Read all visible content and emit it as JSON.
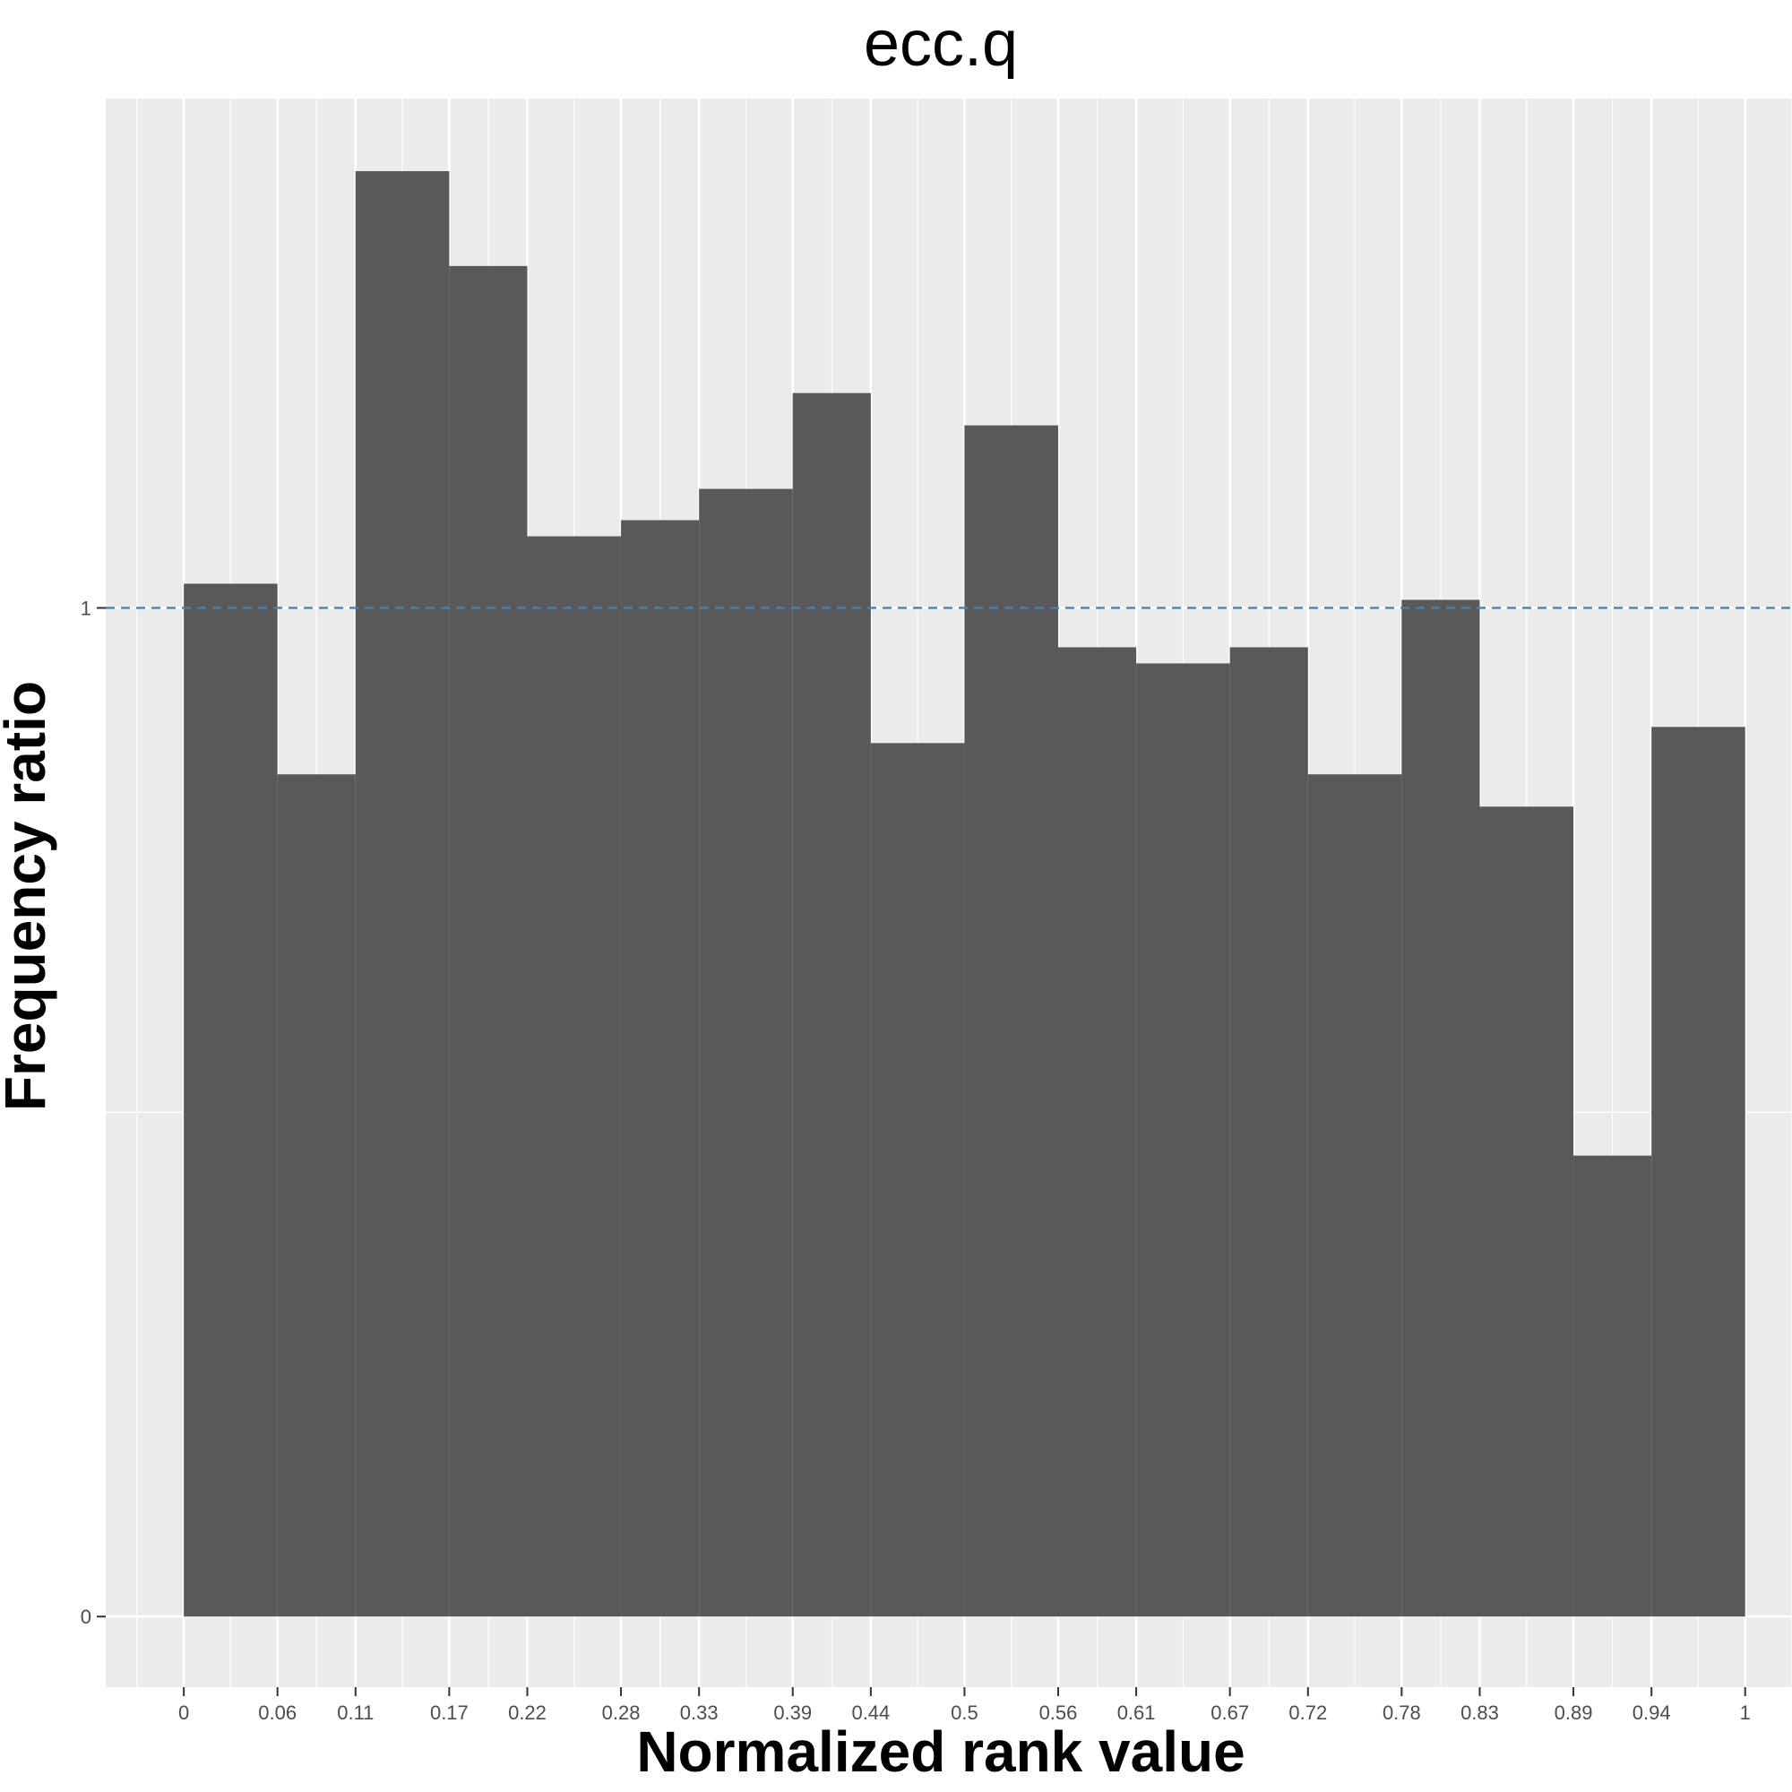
{
  "chart_data": {
    "type": "bar",
    "title": "ecc.q",
    "xlabel": "Normalized rank value",
    "ylabel": "Frequency ratio",
    "x_ticks": [
      "0",
      "0.06",
      "0.11",
      "0.17",
      "0.22",
      "0.28",
      "0.33",
      "0.39",
      "0.44",
      "0.5",
      "0.56",
      "0.61",
      "0.67",
      "0.72",
      "0.78",
      "0.83",
      "0.89",
      "0.94",
      "1"
    ],
    "y_ticks": [
      "0",
      "1"
    ],
    "bins": [
      {
        "from": 0,
        "to": 0.06,
        "value": 1.024
      },
      {
        "from": 0.06,
        "to": 0.11,
        "value": 0.835
      },
      {
        "from": 0.11,
        "to": 0.17,
        "value": 1.433
      },
      {
        "from": 0.17,
        "to": 0.22,
        "value": 1.339
      },
      {
        "from": 0.22,
        "to": 0.28,
        "value": 1.071
      },
      {
        "from": 0.28,
        "to": 0.33,
        "value": 1.087
      },
      {
        "from": 0.33,
        "to": 0.39,
        "value": 1.118
      },
      {
        "from": 0.39,
        "to": 0.44,
        "value": 1.213
      },
      {
        "from": 0.44,
        "to": 0.5,
        "value": 0.866
      },
      {
        "from": 0.5,
        "to": 0.56,
        "value": 1.181
      },
      {
        "from": 0.56,
        "to": 0.61,
        "value": 0.961
      },
      {
        "from": 0.61,
        "to": 0.67,
        "value": 0.945
      },
      {
        "from": 0.67,
        "to": 0.72,
        "value": 0.961
      },
      {
        "from": 0.72,
        "to": 0.78,
        "value": 0.835
      },
      {
        "from": 0.78,
        "to": 0.83,
        "value": 1.008
      },
      {
        "from": 0.83,
        "to": 0.89,
        "value": 0.803
      },
      {
        "from": 0.89,
        "to": 0.94,
        "value": 0.457
      },
      {
        "from": 0.94,
        "to": 1,
        "value": 0.882
      }
    ],
    "reference_line": {
      "y": 1,
      "style": "dashed",
      "color": "#4682b4"
    },
    "xlim": [
      -0.05,
      1.03
    ],
    "ylim": [
      -0.07,
      1.505
    ],
    "grid": true,
    "legend": "none",
    "colors": {
      "bar": "#595959",
      "panel": "#ebebeb",
      "grid": "#ffffff"
    }
  }
}
